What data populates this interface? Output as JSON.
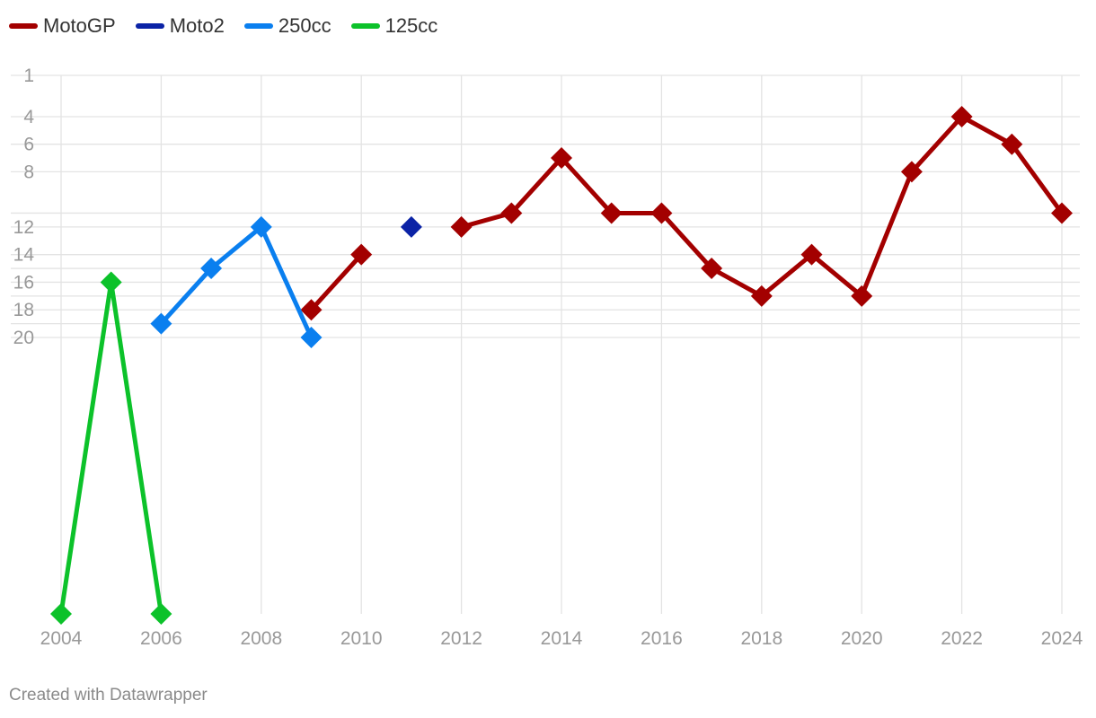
{
  "chart_data": {
    "type": "line",
    "title": "",
    "xlabel": "",
    "ylabel": "",
    "y_reversed": true,
    "xlim": [
      2004,
      2024
    ],
    "ylim": [
      1,
      40
    ],
    "x_ticks": [
      "2004",
      "2006",
      "2008",
      "2010",
      "2012",
      "2014",
      "2016",
      "2018",
      "2020",
      "2022",
      "2024"
    ],
    "y_tick_labels": [
      "1",
      "4",
      "6",
      "8",
      "12",
      "14",
      "16",
      "18",
      "20"
    ],
    "y_gridlines": [
      1,
      4,
      6,
      8,
      11,
      12,
      14,
      15,
      16,
      17,
      18,
      19,
      20
    ],
    "grid": true,
    "legend_position": "top-left",
    "series": [
      {
        "name": "MotoGP",
        "color": "#a30000",
        "x": [
          2009,
          2010,
          null,
          2012,
          2013,
          2014,
          2015,
          2016,
          2017,
          2018,
          2019,
          2020,
          2021,
          2022,
          2023,
          2024
        ],
        "values": [
          18,
          14,
          null,
          12,
          11,
          7,
          11,
          11,
          15,
          17,
          14,
          17,
          8,
          4,
          6,
          11
        ]
      },
      {
        "name": "Moto2",
        "color": "#0b23a6",
        "x": [
          2011
        ],
        "values": [
          12
        ]
      },
      {
        "name": "250cc",
        "color": "#0a7fef",
        "x": [
          2006,
          2007,
          2008,
          2009
        ],
        "values": [
          19,
          15,
          12,
          20
        ]
      },
      {
        "name": "125cc",
        "color": "#0cc22a",
        "x": [
          2004,
          2005,
          2006
        ],
        "values": [
          40,
          16,
          40
        ]
      }
    ]
  },
  "credit": "Created with Datawrapper"
}
